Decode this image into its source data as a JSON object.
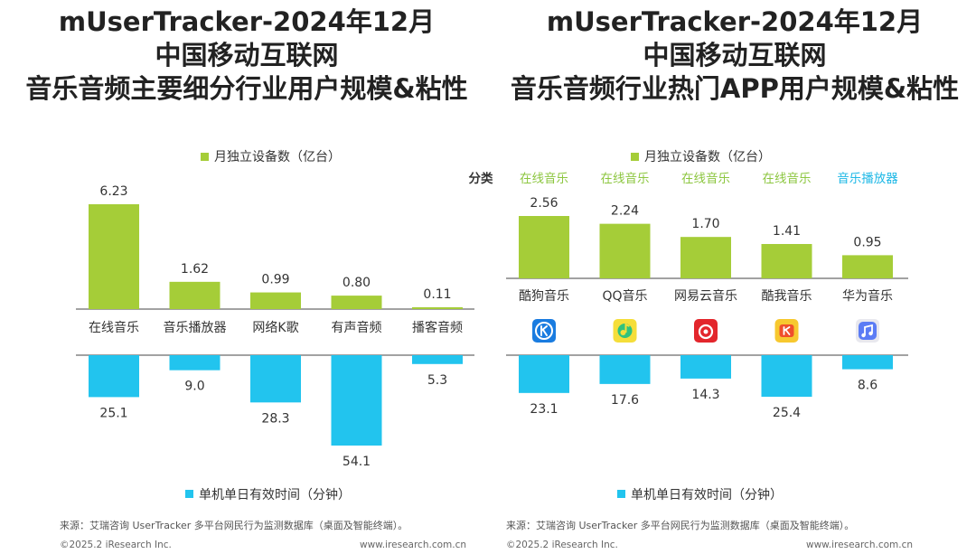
{
  "left": {
    "title_lines": [
      "mUserTracker-2024年12月",
      "中国移动互联网",
      "音乐音频主要细分行业用户规模&粘性"
    ],
    "chart_data": {
      "type": "bar",
      "categories": [
        "在线音乐",
        "音乐播放器",
        "网络K歌",
        "有声音频",
        "播客音频"
      ],
      "series": [
        {
          "name": "月独立设备数（亿台）",
          "values": [
            6.23,
            1.62,
            0.99,
            0.8,
            0.11
          ],
          "color": "#a5cd38"
        },
        {
          "name": "单机单日有效时间（分钟）",
          "values": [
            25.1,
            9.0,
            28.3,
            54.1,
            5.3
          ],
          "color": "#22c4ee"
        }
      ],
      "labels_top": [
        "6.23",
        "1.62",
        "0.99",
        "0.80",
        "0.11"
      ],
      "labels_bottom": [
        "25.1",
        "9.0",
        "28.3",
        "54.1",
        "5.3"
      ]
    },
    "source": "来源：艾瑞咨询 UserTracker 多平台网民行为监测数据库（桌面及智能终端）。",
    "copyright": "©2025.2 iResearch Inc.",
    "website": "www.iresearch.com.cn"
  },
  "right": {
    "title_lines": [
      "mUserTracker-2024年12月",
      "中国移动互联网",
      "音乐音频行业热门APP用户规模&粘性"
    ],
    "category_header": "分类",
    "chart_data": {
      "type": "bar",
      "categories": [
        "酷狗音乐",
        "QQ音乐",
        "网易云音乐",
        "酷我音乐",
        "华为音乐"
      ],
      "classes": [
        "在线音乐",
        "在线音乐",
        "在线音乐",
        "在线音乐",
        "音乐播放器"
      ],
      "series": [
        {
          "name": "月独立设备数（亿台）",
          "values": [
            2.56,
            2.24,
            1.7,
            1.41,
            0.95
          ],
          "color": "#a5cd38"
        },
        {
          "name": "单机单日有效时间（分钟）",
          "values": [
            23.1,
            17.6,
            14.3,
            25.4,
            8.6
          ],
          "color": "#22c4ee"
        }
      ],
      "labels_top": [
        "2.56",
        "2.24",
        "1.70",
        "1.41",
        "0.95"
      ],
      "labels_bottom": [
        "23.1",
        "17.6",
        "14.3",
        "25.4",
        "8.6"
      ],
      "icons": [
        "kugou-icon",
        "qq-music-icon",
        "netease-music-icon",
        "kuwo-icon",
        "huawei-music-icon"
      ]
    },
    "source": "来源：艾瑞咨询 UserTracker 多平台网民行为监测数据库（桌面及智能终端）。",
    "copyright": "©2025.2 iResearch Inc.",
    "website": "www.iresearch.com.cn"
  },
  "colors": {
    "green": "#a5cd38",
    "blue": "#22c4ee",
    "class_green": "#8cc63f",
    "class_blue": "#1eb8e6"
  }
}
